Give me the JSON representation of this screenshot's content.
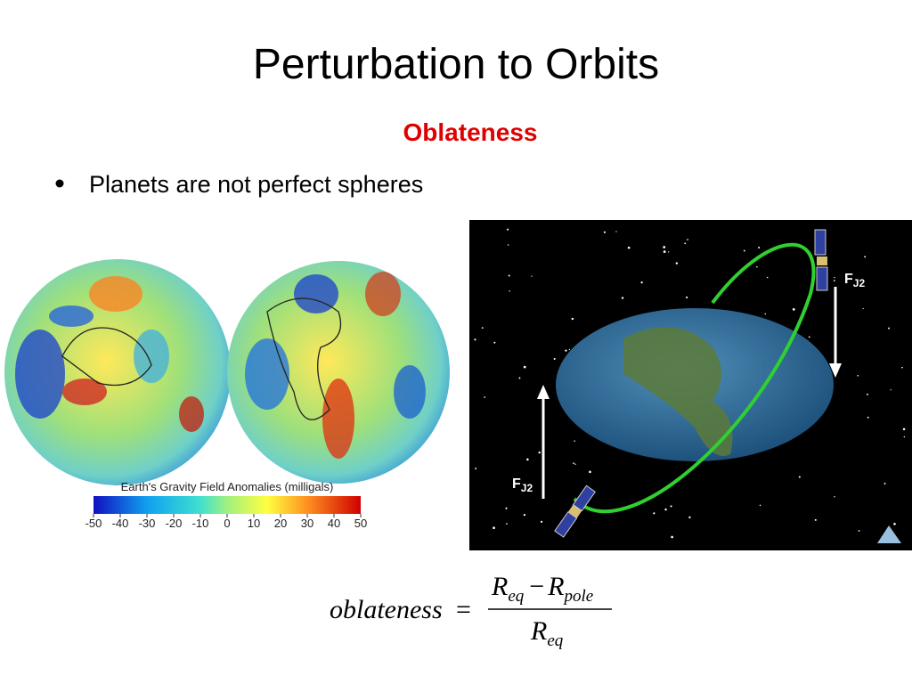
{
  "slide": {
    "title": "Perturbation to Orbits",
    "subtitle": "Oblateness",
    "bullets": [
      "Planets are not perfect spheres"
    ]
  },
  "gravity_figure": {
    "colorbar_title": "Earth's Gravity Field Anomalies (milligals)",
    "colorbar_ticks": [
      -50,
      -40,
      -30,
      -20,
      -10,
      0,
      10,
      20,
      30,
      40,
      50
    ]
  },
  "orbit_figure": {
    "force_labels": [
      {
        "symbol": "F",
        "subscript": "J2"
      },
      {
        "symbol": "F",
        "subscript": "J2"
      }
    ]
  },
  "formula": {
    "lhs": "oblateness",
    "equals": "=",
    "numerator": {
      "minuend": {
        "base": "R",
        "sub": "eq"
      },
      "operator": "−",
      "subtrahend": {
        "base": "R",
        "sub": "pole"
      }
    },
    "denominator": {
      "base": "R",
      "sub": "eq"
    }
  }
}
